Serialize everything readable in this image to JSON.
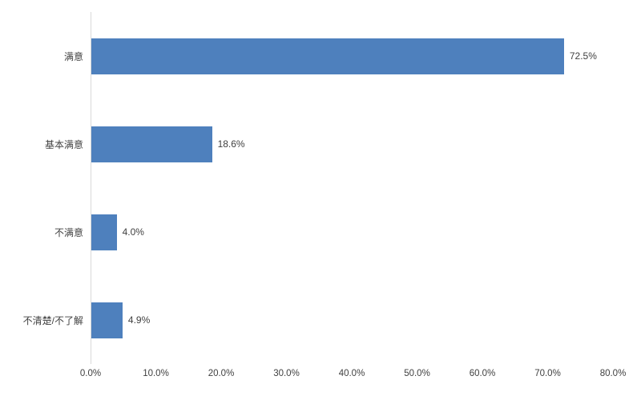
{
  "chart_data": {
    "type": "bar",
    "orientation": "horizontal",
    "title": "",
    "categories": [
      "满意",
      "基本满意",
      "不满意",
      "不清楚/不了解"
    ],
    "values": [
      72.5,
      18.6,
      4.0,
      4.9
    ],
    "data_labels": [
      "72.5%",
      "18.6%",
      "4.0%",
      "4.9%"
    ],
    "x_ticks": [
      "0.0%",
      "10.0%",
      "20.0%",
      "30.0%",
      "40.0%",
      "50.0%",
      "60.0%",
      "70.0%",
      "80.0%"
    ],
    "xlim": [
      0,
      80
    ],
    "grid": false,
    "legend": "none",
    "colors": {
      "bar_fill": "#4e80bd",
      "axis_line": "#d9d9d9",
      "label_text": "#404040",
      "background": "#ffffff"
    }
  }
}
